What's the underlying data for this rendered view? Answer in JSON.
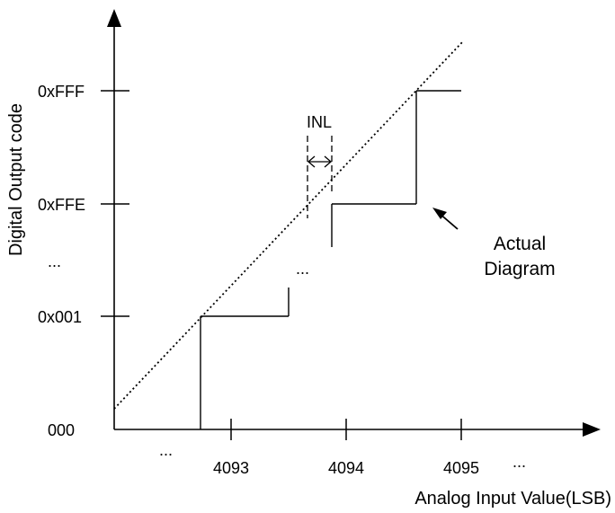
{
  "axes": {
    "x_title": "Analog Input Value(LSB)",
    "y_title": "Digital Output code"
  },
  "y_ticks": [
    {
      "id": "0xfff",
      "label": "0xFFF"
    },
    {
      "id": "0xffe",
      "label": "0xFFE"
    },
    {
      "id": "ellipsis",
      "label": "..."
    },
    {
      "id": "0x001",
      "label": "0x001"
    },
    {
      "id": "000",
      "label": "000"
    }
  ],
  "x_ticks": [
    {
      "id": "ellipsis-left",
      "label": "..."
    },
    {
      "id": "4093",
      "label": "4093"
    },
    {
      "id": "4094",
      "label": "4094"
    },
    {
      "id": "4095",
      "label": "4095"
    },
    {
      "id": "ellipsis-right",
      "label": "..."
    }
  ],
  "annotations": {
    "inl": "INL",
    "mid_ellipsis": "...",
    "actual_line1": "Actual",
    "actual_line2": "Diagram"
  },
  "colors": {
    "stroke": "#000000",
    "background": "#ffffff"
  }
}
